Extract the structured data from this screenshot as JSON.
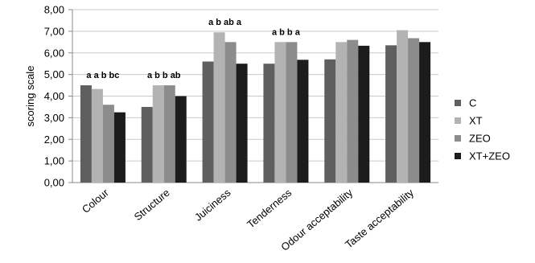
{
  "chart_data": {
    "type": "bar",
    "categories": [
      "Colour",
      "Structure",
      "Juiciness",
      "Tenderness",
      "Odour acceptability",
      "Taste acceptability"
    ],
    "series": [
      {
        "name": "C",
        "color": "#5f5f5f",
        "values": [
          4.5,
          3.5,
          5.6,
          5.5,
          5.7,
          6.35
        ]
      },
      {
        "name": "XT",
        "color": "#b3b3b3",
        "values": [
          4.33,
          4.5,
          6.95,
          6.5,
          6.5,
          7.05
        ]
      },
      {
        "name": "ZEO",
        "color": "#8c8c8c",
        "values": [
          3.6,
          4.5,
          6.5,
          6.5,
          6.6,
          6.68
        ]
      },
      {
        "name": "XT+ZEO",
        "color": "#1c1c1c",
        "values": [
          3.25,
          4.0,
          5.5,
          5.68,
          6.33,
          6.5
        ]
      }
    ],
    "significance_labels": [
      "a  a  b  bc",
      "a b b ab",
      "a  b ab  a",
      "a  b  b  a",
      "",
      ""
    ],
    "xlabel": "",
    "ylabel": "scoring scale",
    "ylim": [
      0,
      8
    ],
    "yticks": [
      "0,00",
      "1,00",
      "2,00",
      "3,00",
      "4,00",
      "5,00",
      "6,00",
      "7,00",
      "8,00"
    ],
    "grid": true,
    "legend_position": "right"
  }
}
